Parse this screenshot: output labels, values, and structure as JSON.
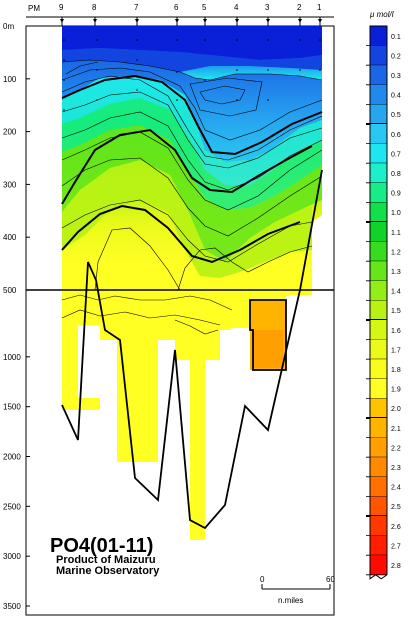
{
  "chart_data": {
    "type": "heatmap",
    "title": "PO4(01-11)",
    "subtitle_line1": "Product of Maizuru",
    "subtitle_line2": "Marine Observatory",
    "top_axis_label": "PM",
    "stations": [
      "9",
      "8",
      "7",
      "6",
      "5",
      "4",
      "3",
      "2",
      "1"
    ],
    "depth_ticks_upper": [
      "0m",
      "100",
      "200",
      "300",
      "400",
      "500"
    ],
    "depth_ticks_lower": [
      "1000",
      "1500",
      "2000",
      "2500",
      "3000",
      "3500"
    ],
    "depth_upper_range_m": [
      0,
      500
    ],
    "depth_lower_range_m": [
      500,
      3500
    ],
    "colorbar": {
      "unit": "μ mol/l",
      "levels": [
        "0.1",
        "0.2",
        "0.3",
        "0.4",
        "0.5",
        "0.6",
        "0.7",
        "0.8",
        "0.9",
        "1.0",
        "1.1",
        "1.2",
        "1.3",
        "1.4",
        "1.5",
        "1.6",
        "1.7",
        "1.8",
        "1.9",
        "2.0",
        "2.1",
        "2.2",
        "2.3",
        "2.4",
        "2.5",
        "2.6",
        "2.7",
        "2.8"
      ],
      "colors": [
        "#0a1fd8",
        "#1244e0",
        "#1a66e6",
        "#2188ec",
        "#27a6f0",
        "#28c8f2",
        "#1ee6f0",
        "#1cf0c8",
        "#18ec86",
        "#12e04a",
        "#10d22a",
        "#38dc1e",
        "#66e61a",
        "#92ee16",
        "#b8f214",
        "#d6f614",
        "#ecfa1a",
        "#fafc1e",
        "#ffff24",
        "#ffc400",
        "#ffb400",
        "#ffa000",
        "#ff8a00",
        "#ff7000",
        "#ff5400",
        "#ff3800",
        "#ff1e00",
        "#ff0a00"
      ],
      "bold_levels": [
        "0.5",
        "1.0",
        "1.5",
        "2.0",
        "2.5"
      ]
    },
    "scale_bar": {
      "start": "0",
      "end": "60",
      "unit": "n.miles"
    }
  }
}
